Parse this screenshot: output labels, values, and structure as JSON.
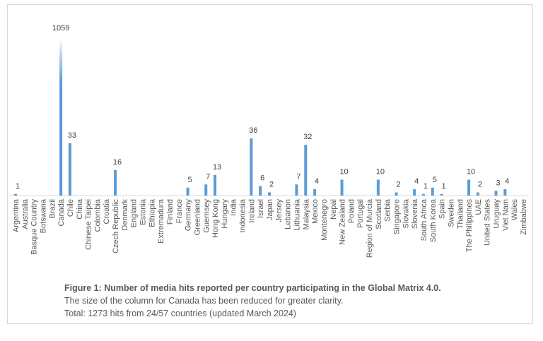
{
  "chart_data": {
    "type": "bar",
    "title": "Figure 1: Number of media hits reported per country participating in the Global Matrix 4.0.",
    "xlabel": "",
    "ylabel": "",
    "grid": false,
    "legend": "none",
    "bar_color": "#5b9bd5",
    "categories": [
      "Argentina",
      "Australia",
      "Basque Country",
      "Botswana",
      "Brazil",
      "Canada",
      "Chile",
      "China",
      "Chinese Taipei",
      "Colombia",
      "Croatia",
      "Czech Republic",
      "Denmark",
      "England",
      "Estonia",
      "Ethiopia",
      "Extremadura",
      "Finland",
      "France",
      "Germany",
      "Greenland",
      "Guernsey",
      "Hong Kong",
      "Hungary",
      "India",
      "Indonesia",
      "Ireland",
      "Israel",
      "Japan",
      "Jersey",
      "Lebanon",
      "Lithuania",
      "Malaysia",
      "Mexico",
      "Montenegro",
      "Nepal",
      "New Zealand",
      "Poland",
      "Portugal",
      "Region of Murcia",
      "Scotland",
      "Serbia",
      "Singapore",
      "Slovakia",
      "Slovenia",
      "South Africa",
      "South Korea",
      "Spain",
      "Sweden",
      "Thailand",
      "The Philippines",
      "UAE",
      "United States",
      "Uruguay",
      "Viet Nam",
      "Wales",
      "Zimbabwe"
    ],
    "values": [
      1,
      0,
      0,
      0,
      0,
      1059,
      33,
      0,
      0,
      0,
      0,
      16,
      0,
      0,
      0,
      0,
      0,
      0,
      0,
      5,
      0,
      7,
      13,
      0,
      0,
      0,
      36,
      6,
      2,
      0,
      0,
      7,
      32,
      4,
      0,
      0,
      10,
      0,
      0,
      0,
      10,
      0,
      2,
      0,
      4,
      1,
      5,
      1,
      0,
      0,
      10,
      2,
      0,
      3,
      4,
      0,
      0
    ],
    "data_labels": [
      "1",
      "",
      "",
      "",
      "",
      "1059",
      "33",
      "",
      "",
      "",
      "",
      "16",
      "",
      "",
      "",
      "",
      "",
      "",
      "",
      "5",
      "",
      "7",
      "13",
      "",
      "",
      "",
      "36",
      "6",
      "2",
      "",
      "",
      "7",
      "32",
      "4",
      "",
      "",
      "10",
      "",
      "",
      "",
      "10",
      "",
      "2",
      "",
      "4",
      "1",
      "5",
      "1",
      "",
      "",
      "10",
      "2",
      "",
      "3",
      "4",
      "",
      ""
    ],
    "truncated_category": "Canada",
    "ylim": [
      0,
      40
    ]
  },
  "caption": {
    "title": "Figure 1: Number of media hits reported per country participating in the Global Matrix 4.0.",
    "note": "The size of the column for Canada has been reduced for greater clarity.",
    "total": "Total: 1273 hits from 24/57 countries (updated March 2024)"
  }
}
